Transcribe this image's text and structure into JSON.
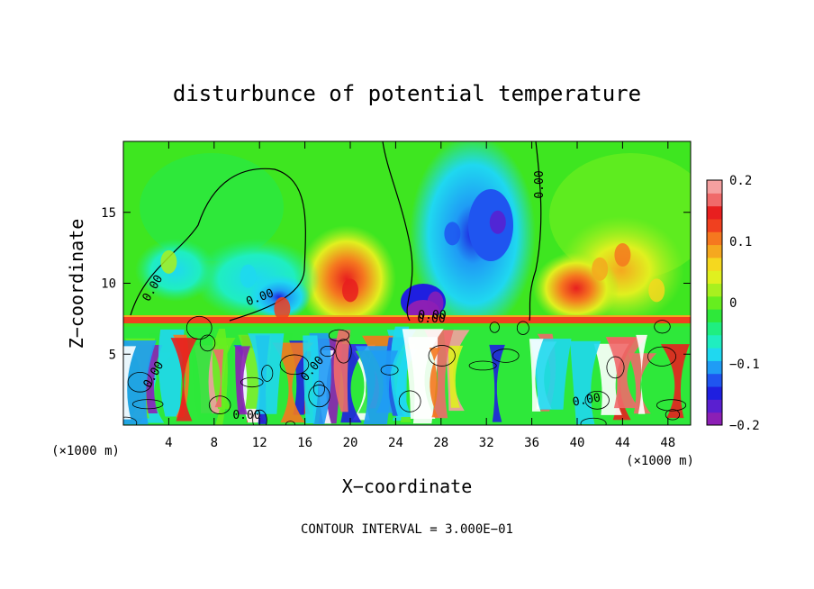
{
  "chart_data": {
    "type": "heatmap",
    "title": "disturbunce of potential temperature",
    "xlabel": "X−coordinate",
    "ylabel": "Z−coordinate",
    "x_unit_left": "(×1000 m)",
    "x_unit_right": "(×1000 m)",
    "xlim": [
      0,
      50
    ],
    "ylim": [
      0,
      20
    ],
    "x_ticks": [
      4,
      8,
      12,
      16,
      20,
      24,
      28,
      32,
      36,
      40,
      44,
      48
    ],
    "x_tick_labels": [
      "4",
      "8",
      "12",
      "16",
      "20",
      "24",
      "28",
      "32",
      "36",
      "40",
      "44",
      "48"
    ],
    "y_ticks": [
      5,
      10,
      15
    ],
    "y_tick_labels": [
      "5",
      "10",
      "15"
    ],
    "colorbar": {
      "range": [
        -0.2,
        0.2
      ],
      "ticks": [
        -0.2,
        -0.1,
        0,
        0.1,
        0.2
      ],
      "tick_labels": [
        "−0.2",
        "−0.1",
        "0",
        "0.1",
        "0.2"
      ],
      "colors": [
        "#8c1fb5",
        "#5a1fd0",
        "#1f1fe0",
        "#1f55f0",
        "#1f9cf5",
        "#1fd8f0",
        "#1feec0",
        "#1fee80",
        "#2ee83a",
        "#66ee1f",
        "#a8f01f",
        "#e0f01f",
        "#f5d81f",
        "#f5a81f",
        "#f5781f",
        "#f0401f",
        "#e81f1f",
        "#f06a6a",
        "#f5a0a0"
      ]
    },
    "contour_labels": [
      "0.00",
      "0.00",
      "0.00",
      "0.00",
      "0.00",
      "0.00",
      "0.00",
      "0.00",
      "0.00"
    ],
    "footnote": "CONTOUR INTERVAL = 3.000E−01",
    "tropopause_z": 7.2,
    "features": [
      {
        "x": 20,
        "z": 9.5,
        "value": 0.15
      },
      {
        "x": 29,
        "z": 13.5,
        "value": -0.12
      },
      {
        "x": 33,
        "z": 14.3,
        "value": -0.17
      },
      {
        "x": 27.5,
        "z": 8.6,
        "value": -0.2
      },
      {
        "x": 11,
        "z": 10.5,
        "value": -0.08
      },
      {
        "x": 14,
        "z": 8.2,
        "value": 0.12
      },
      {
        "x": 42,
        "z": 11,
        "value": 0.08
      },
      {
        "x": 47,
        "z": 9.5,
        "value": 0.06
      },
      {
        "x": 44,
        "z": 12,
        "value": 0.1
      },
      {
        "x": 4,
        "z": 11.5,
        "value": 0.02
      }
    ]
  }
}
